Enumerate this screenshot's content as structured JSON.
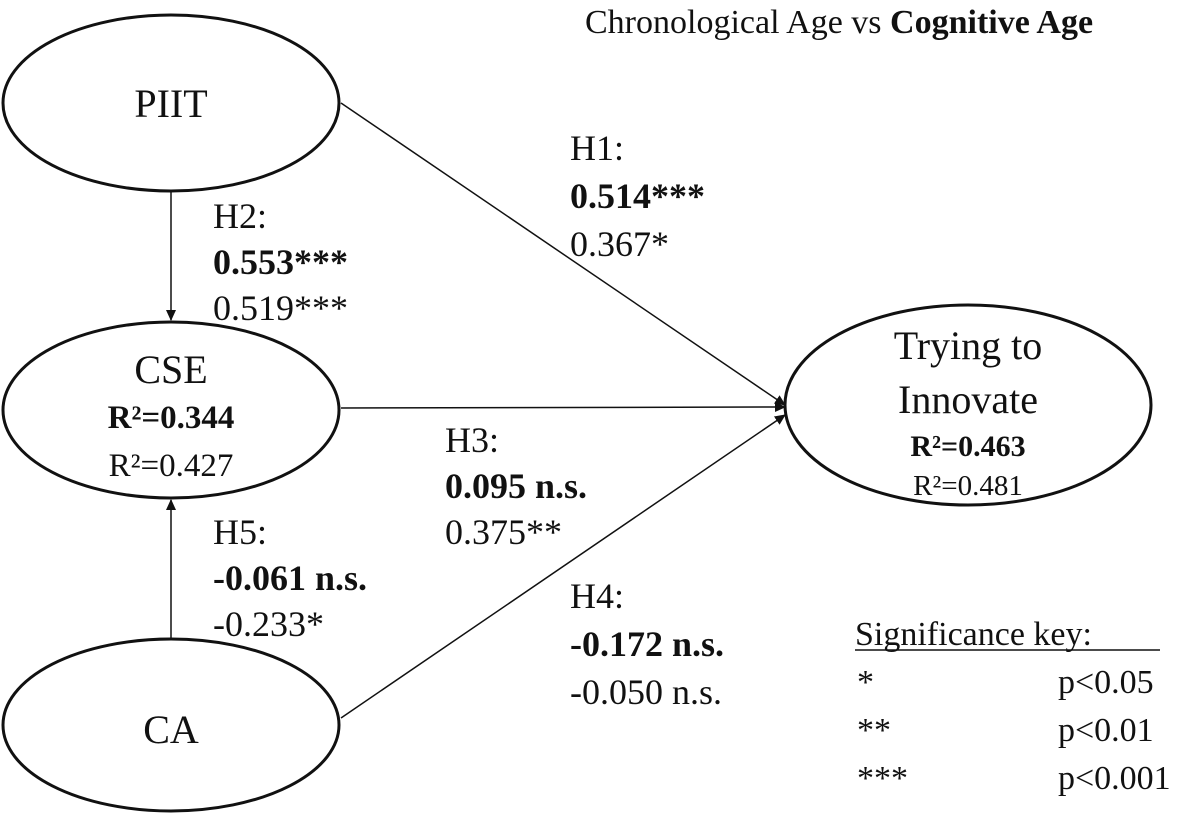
{
  "header": {
    "normal": "Chronological Age vs ",
    "bold": "Cognitive Age"
  },
  "nodes": {
    "piit": {
      "name": "PIIT"
    },
    "cse": {
      "name": "CSE",
      "r2_bold": "R²=0.344",
      "r2_normal": "R²=0.427"
    },
    "ca": {
      "name": "CA"
    },
    "trying": {
      "name_line1": "Trying to",
      "name_line2": "Innovate",
      "r2_bold": "R²=0.463",
      "r2_normal": "R²=0.481"
    }
  },
  "paths": {
    "h1": {
      "label": "H1:",
      "bold": "0.514***",
      "normal": "0.367*"
    },
    "h2": {
      "label": "H2:",
      "bold": "0.553***",
      "normal": "0.519***"
    },
    "h3": {
      "label": "H3:",
      "bold": "0.095 n.s.",
      "normal": "0.375**"
    },
    "h4": {
      "label": "H4:",
      "bold": "-0.172 n.s.",
      "normal": "-0.050 n.s."
    },
    "h5": {
      "label": "H5:",
      "bold": "-0.061 n.s.",
      "normal": "-0.233*"
    }
  },
  "significance_key": {
    "title": "Significance key:",
    "rows": [
      {
        "symbol": "*",
        "meaning": "p<0.05"
      },
      {
        "symbol": "**",
        "meaning": "p<0.01"
      },
      {
        "symbol": "***",
        "meaning": "p<0.001"
      }
    ]
  }
}
